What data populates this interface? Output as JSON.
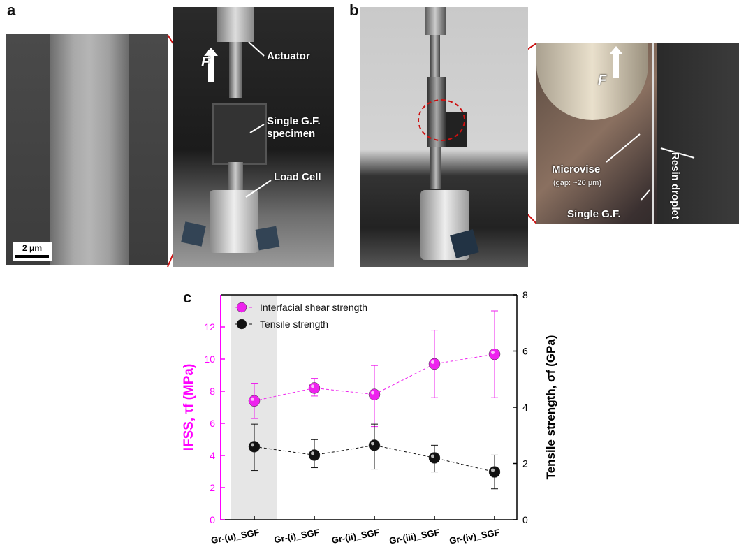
{
  "panels": {
    "a": {
      "letter": "a",
      "scale_bar": "2 μm",
      "labels": {
        "actuator": "Actuator",
        "specimen": "Single G.F.\nspecimen",
        "load_cell": "Load Cell",
        "force": "F"
      }
    },
    "b": {
      "letter": "b",
      "labels": {
        "force": "F",
        "microvise": "Microvise",
        "gap": "(gap: ~20 μm)",
        "single_gf": "Single G.F.",
        "resin": "Resin droplet"
      }
    },
    "c": {
      "letter": "c"
    }
  },
  "colors": {
    "ifss": "#ee22ee",
    "tensile": "#111111",
    "highlight": "#e6e6e6",
    "magenta_axis": "#ff00ff"
  },
  "chart_data": {
    "type": "scatter",
    "categories": [
      "Gr-(u)_SGF",
      "Gr-(i)_SGF",
      "Gr-(ii)_SGF",
      "Gr-(iii)_SGF",
      "Gr-(iv)_SGF"
    ],
    "y_left": {
      "label": "IFSS, τf (MPa)",
      "range": [
        0,
        14
      ],
      "ticks": [
        0,
        2,
        4,
        6,
        8,
        10,
        12
      ]
    },
    "y_right": {
      "label": "Tensile strength, σf (GPa)",
      "range": [
        0,
        8
      ],
      "ticks": [
        0,
        2,
        4,
        6,
        8
      ]
    },
    "series": [
      {
        "name": "Interfacial shear strength",
        "axis": "left",
        "values": [
          7.4,
          8.2,
          7.8,
          9.7,
          10.3
        ],
        "err_low": [
          6.3,
          7.7,
          5.8,
          7.6,
          7.6
        ],
        "err_high": [
          8.5,
          8.8,
          9.6,
          11.8,
          13.0
        ]
      },
      {
        "name": "Tensile strength",
        "axis": "right",
        "values": [
          2.6,
          2.3,
          2.65,
          2.2,
          1.7
        ],
        "err_low": [
          1.75,
          1.85,
          1.8,
          1.7,
          1.1
        ],
        "err_high": [
          3.4,
          2.85,
          3.4,
          2.65,
          2.3
        ]
      }
    ],
    "highlight_category": "Gr-(u)_SGF",
    "legend_position": "top-left",
    "grid": false
  }
}
